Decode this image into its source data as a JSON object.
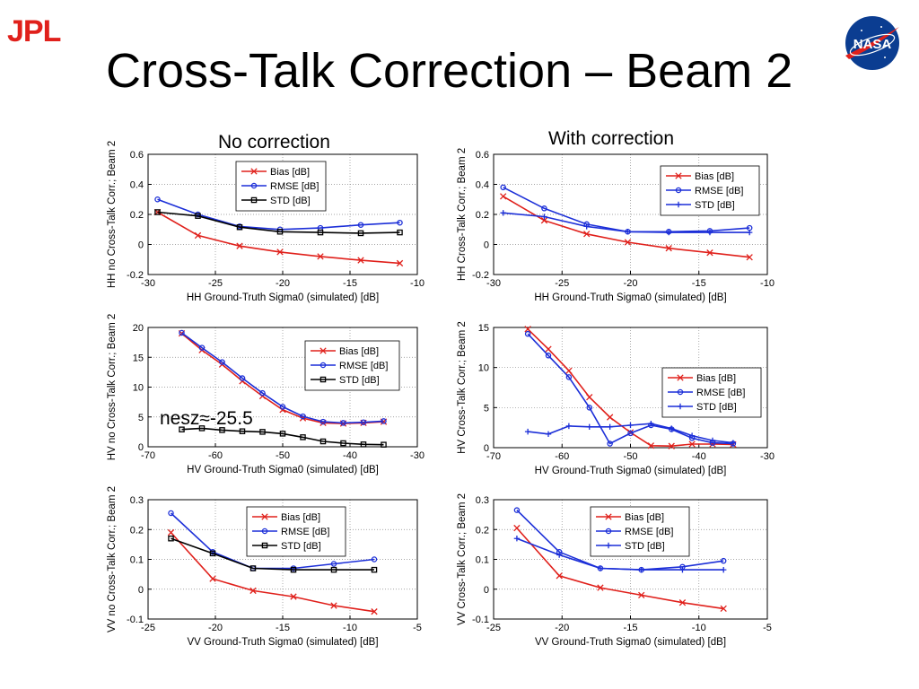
{
  "header": {
    "org_logo": "JPL",
    "agency_logo": "NASA",
    "title": "Cross-Talk Correction – Beam 2"
  },
  "columns": {
    "left_title": "No correction",
    "right_title": "With correction"
  },
  "annotation": "nesz≈-25.5",
  "colors": {
    "bias": "#e0201b",
    "rmse": "#1c2fd8",
    "std": "#000000",
    "std_corrected": "#1c2fd8"
  },
  "chart_data": [
    {
      "type": "line",
      "ylabel": "HH no Cross-Talk Corr.; Beam 2",
      "xlabel": "HH Ground-Truth Sigma0 (simulated) [dB]",
      "xlim": [
        -30,
        -10
      ],
      "ylim": [
        -0.2,
        0.6
      ],
      "xticks": [
        -30,
        -25,
        -20,
        -15,
        -10
      ],
      "yticks": [
        -0.2,
        0,
        0.2,
        0.4,
        0.6
      ],
      "xtick_labels": [
        "-30",
        "-25",
        "-20",
        "-15",
        "-10"
      ],
      "ytick_labels": [
        "-0.2",
        "0",
        "0.2",
        "0.4",
        "0.6"
      ],
      "grid": true,
      "legend": "top-right",
      "series": [
        {
          "name": "Bias [dB]",
          "color": "#e0201b",
          "marker": "x",
          "x": [
            -29.3,
            -26.3,
            -23.2,
            -20.2,
            -17.2,
            -14.2,
            -11.3
          ],
          "y": [
            0.215,
            0.06,
            -0.01,
            -0.05,
            -0.08,
            -0.105,
            -0.125
          ]
        },
        {
          "name": "RMSE [dB]",
          "color": "#1c2fd8",
          "marker": "o",
          "x": [
            -29.3,
            -26.3,
            -23.2,
            -20.2,
            -17.2,
            -14.2,
            -11.3
          ],
          "y": [
            0.3,
            0.2,
            0.12,
            0.1,
            0.11,
            0.13,
            0.145
          ]
        },
        {
          "name": "STD [dB]",
          "color": "#000000",
          "marker": "s",
          "x": [
            -29.3,
            -26.3,
            -23.2,
            -20.2,
            -17.2,
            -14.2,
            -11.3
          ],
          "y": [
            0.215,
            0.19,
            0.115,
            0.085,
            0.08,
            0.075,
            0.08
          ]
        }
      ]
    },
    {
      "type": "line",
      "ylabel": "HH Cross-Talk Corr.; Beam 2",
      "xlabel": "HH Ground-Truth Sigma0 (simulated) [dB]",
      "xlim": [
        -30,
        -10
      ],
      "ylim": [
        -0.2,
        0.6
      ],
      "xticks": [
        -30,
        -25,
        -20,
        -15,
        -10
      ],
      "yticks": [
        -0.2,
        0,
        0.2,
        0.4,
        0.6
      ],
      "xtick_labels": [
        "-30",
        "-25",
        "-20",
        "-15",
        "-10"
      ],
      "ytick_labels": [
        "-0.2",
        "0",
        "0.2",
        "0.4",
        "0.6"
      ],
      "grid": true,
      "legend": "top-right",
      "series": [
        {
          "name": "Bias [dB]",
          "color": "#e0201b",
          "marker": "x",
          "x": [
            -29.3,
            -26.3,
            -23.2,
            -20.2,
            -17.2,
            -14.2,
            -11.3
          ],
          "y": [
            0.32,
            0.16,
            0.07,
            0.015,
            -0.025,
            -0.055,
            -0.085
          ]
        },
        {
          "name": "RMSE [dB]",
          "color": "#1c2fd8",
          "marker": "o",
          "x": [
            -29.3,
            -26.3,
            -23.2,
            -20.2,
            -17.2,
            -14.2,
            -11.3
          ],
          "y": [
            0.38,
            0.24,
            0.135,
            0.085,
            0.085,
            0.09,
            0.11
          ]
        },
        {
          "name": "STD [dB]",
          "color": "#1c2fd8",
          "marker": "+",
          "x": [
            -29.3,
            -26.3,
            -23.2,
            -20.2,
            -17.2,
            -14.2,
            -11.3
          ],
          "y": [
            0.21,
            0.185,
            0.12,
            0.085,
            0.08,
            0.08,
            0.08
          ]
        }
      ]
    },
    {
      "type": "line",
      "ylabel": "HV no Cross-Talk Corr.; Beam 2",
      "xlabel": "HV Ground-Truth Sigma0 (simulated) [dB]",
      "xlim": [
        -70,
        -30
      ],
      "ylim": [
        0,
        20
      ],
      "xticks": [
        -70,
        -60,
        -50,
        -40,
        -30
      ],
      "yticks": [
        0,
        5,
        10,
        15,
        20
      ],
      "xtick_labels": [
        "-70",
        "-60",
        "-50",
        "-40",
        "-30"
      ],
      "ytick_labels": [
        "0",
        "5",
        "10",
        "15",
        "20"
      ],
      "grid": true,
      "legend": "right",
      "series": [
        {
          "name": "Bias [dB]",
          "color": "#e0201b",
          "marker": "x",
          "x": [
            -65,
            -62,
            -59,
            -56,
            -53,
            -50,
            -47,
            -44,
            -41,
            -38,
            -35
          ],
          "y": [
            19,
            16.2,
            13.8,
            11,
            8.5,
            6.2,
            4.8,
            4,
            3.9,
            4,
            4.2
          ]
        },
        {
          "name": "RMSE [dB]",
          "color": "#1c2fd8",
          "marker": "o",
          "x": [
            -65,
            -62,
            -59,
            -56,
            -53,
            -50,
            -47,
            -44,
            -41,
            -38,
            -35
          ],
          "y": [
            19.1,
            16.6,
            14.2,
            11.5,
            9,
            6.7,
            5.1,
            4.2,
            4,
            4.1,
            4.3
          ]
        },
        {
          "name": "STD [dB]",
          "color": "#000000",
          "marker": "s",
          "x": [
            -65,
            -62,
            -59,
            -56,
            -53,
            -50,
            -47,
            -44,
            -41,
            -38,
            -35
          ],
          "y": [
            2.9,
            3.1,
            2.8,
            2.6,
            2.5,
            2.2,
            1.6,
            0.9,
            0.6,
            0.4,
            0.35
          ]
        }
      ]
    },
    {
      "type": "line",
      "ylabel": "HV Cross-Talk Corr.; Beam 2",
      "xlabel": "HV Ground-Truth Sigma0 (simulated) [dB]",
      "xlim": [
        -70,
        -30
      ],
      "ylim": [
        0,
        15
      ],
      "xticks": [
        -70,
        -60,
        -50,
        -40,
        -30
      ],
      "yticks": [
        0,
        5,
        10,
        15
      ],
      "xtick_labels": [
        "-70",
        "-60",
        "-50",
        "-40",
        "-30"
      ],
      "ytick_labels": [
        "0",
        "5",
        "10",
        "15"
      ],
      "grid": true,
      "legend": "right",
      "series": [
        {
          "name": "Bias [dB]",
          "color": "#e0201b",
          "marker": "x",
          "x": [
            -65,
            -62,
            -59,
            -56,
            -53,
            -50,
            -47,
            -44,
            -41,
            -38,
            -35
          ],
          "y": [
            14.8,
            12.3,
            9.6,
            6.3,
            3.8,
            1.9,
            0.25,
            0.2,
            0.45,
            0.45,
            0.4
          ]
        },
        {
          "name": "RMSE [dB]",
          "color": "#1c2fd8",
          "marker": "o",
          "x": [
            -65,
            -62,
            -59,
            -56,
            -53,
            -50,
            -47,
            -44,
            -41,
            -38,
            -35
          ],
          "y": [
            14.2,
            11.5,
            8.8,
            5.0,
            0.5,
            1.8,
            2.8,
            2.3,
            1.2,
            0.6,
            0.5
          ]
        },
        {
          "name": "STD [dB]",
          "color": "#1c2fd8",
          "marker": "+",
          "x": [
            -65,
            -62,
            -59,
            -56,
            -53,
            -50,
            -47,
            -44,
            -41,
            -38,
            -35
          ],
          "y": [
            2.0,
            1.7,
            2.7,
            2.6,
            2.6,
            2.8,
            3.0,
            2.4,
            1.5,
            0.9,
            0.6
          ]
        }
      ]
    },
    {
      "type": "line",
      "ylabel": "VV no Cross-Talk Corr.; Beam 2",
      "xlabel": "VV Ground-Truth Sigma0 (simulated) [dB]",
      "xlim": [
        -25,
        -5
      ],
      "ylim": [
        -0.1,
        0.3
      ],
      "xticks": [
        -25,
        -20,
        -15,
        -10,
        -5
      ],
      "yticks": [
        -0.1,
        0,
        0.1,
        0.2,
        0.3
      ],
      "xtick_labels": [
        "-25",
        "-20",
        "-15",
        "-10",
        "-5"
      ],
      "ytick_labels": [
        "-0.1",
        "0",
        "0.1",
        "0.2",
        "0.3"
      ],
      "grid": true,
      "legend": "top-right",
      "series": [
        {
          "name": "Bias [dB]",
          "color": "#e0201b",
          "marker": "x",
          "x": [
            -23.3,
            -20.2,
            -17.2,
            -14.2,
            -11.2,
            -8.2
          ],
          "y": [
            0.19,
            0.035,
            -0.005,
            -0.025,
            -0.055,
            -0.075
          ]
        },
        {
          "name": "RMSE [dB]",
          "color": "#1c2fd8",
          "marker": "o",
          "x": [
            -23.3,
            -20.2,
            -17.2,
            -14.2,
            -11.2,
            -8.2
          ],
          "y": [
            0.255,
            0.125,
            0.07,
            0.07,
            0.085,
            0.1
          ]
        },
        {
          "name": "STD [dB]",
          "color": "#000000",
          "marker": "s",
          "x": [
            -23.3,
            -20.2,
            -17.2,
            -14.2,
            -11.2,
            -8.2
          ],
          "y": [
            0.17,
            0.12,
            0.07,
            0.065,
            0.065,
            0.065
          ]
        }
      ]
    },
    {
      "type": "line",
      "ylabel": "VV Cross-Talk Corr.; Beam 2",
      "xlabel": "VV Ground-Truth Sigma0 (simulated) [dB]",
      "xlim": [
        -25,
        -5
      ],
      "ylim": [
        -0.1,
        0.3
      ],
      "xticks": [
        -25,
        -20,
        -15,
        -10,
        -5
      ],
      "yticks": [
        -0.1,
        0,
        0.1,
        0.2,
        0.3
      ],
      "xtick_labels": [
        "-25",
        "-20",
        "-15",
        "-10",
        "-5"
      ],
      "ytick_labels": [
        "-0.1",
        "0",
        "0.1",
        "0.2",
        "0.3"
      ],
      "grid": true,
      "legend": "top-right",
      "series": [
        {
          "name": "Bias [dB]",
          "color": "#e0201b",
          "marker": "x",
          "x": [
            -23.3,
            -20.2,
            -17.2,
            -14.2,
            -11.2,
            -8.2
          ],
          "y": [
            0.205,
            0.045,
            0.005,
            -0.02,
            -0.045,
            -0.065
          ]
        },
        {
          "name": "RMSE [dB]",
          "color": "#1c2fd8",
          "marker": "o",
          "x": [
            -23.3,
            -20.2,
            -17.2,
            -14.2,
            -11.2,
            -8.2
          ],
          "y": [
            0.265,
            0.125,
            0.07,
            0.065,
            0.075,
            0.095
          ]
        },
        {
          "name": "STD [dB]",
          "color": "#1c2fd8",
          "marker": "+",
          "x": [
            -23.3,
            -20.2,
            -17.2,
            -14.2,
            -11.2,
            -8.2
          ],
          "y": [
            0.17,
            0.115,
            0.07,
            0.065,
            0.065,
            0.065
          ]
        }
      ]
    }
  ]
}
